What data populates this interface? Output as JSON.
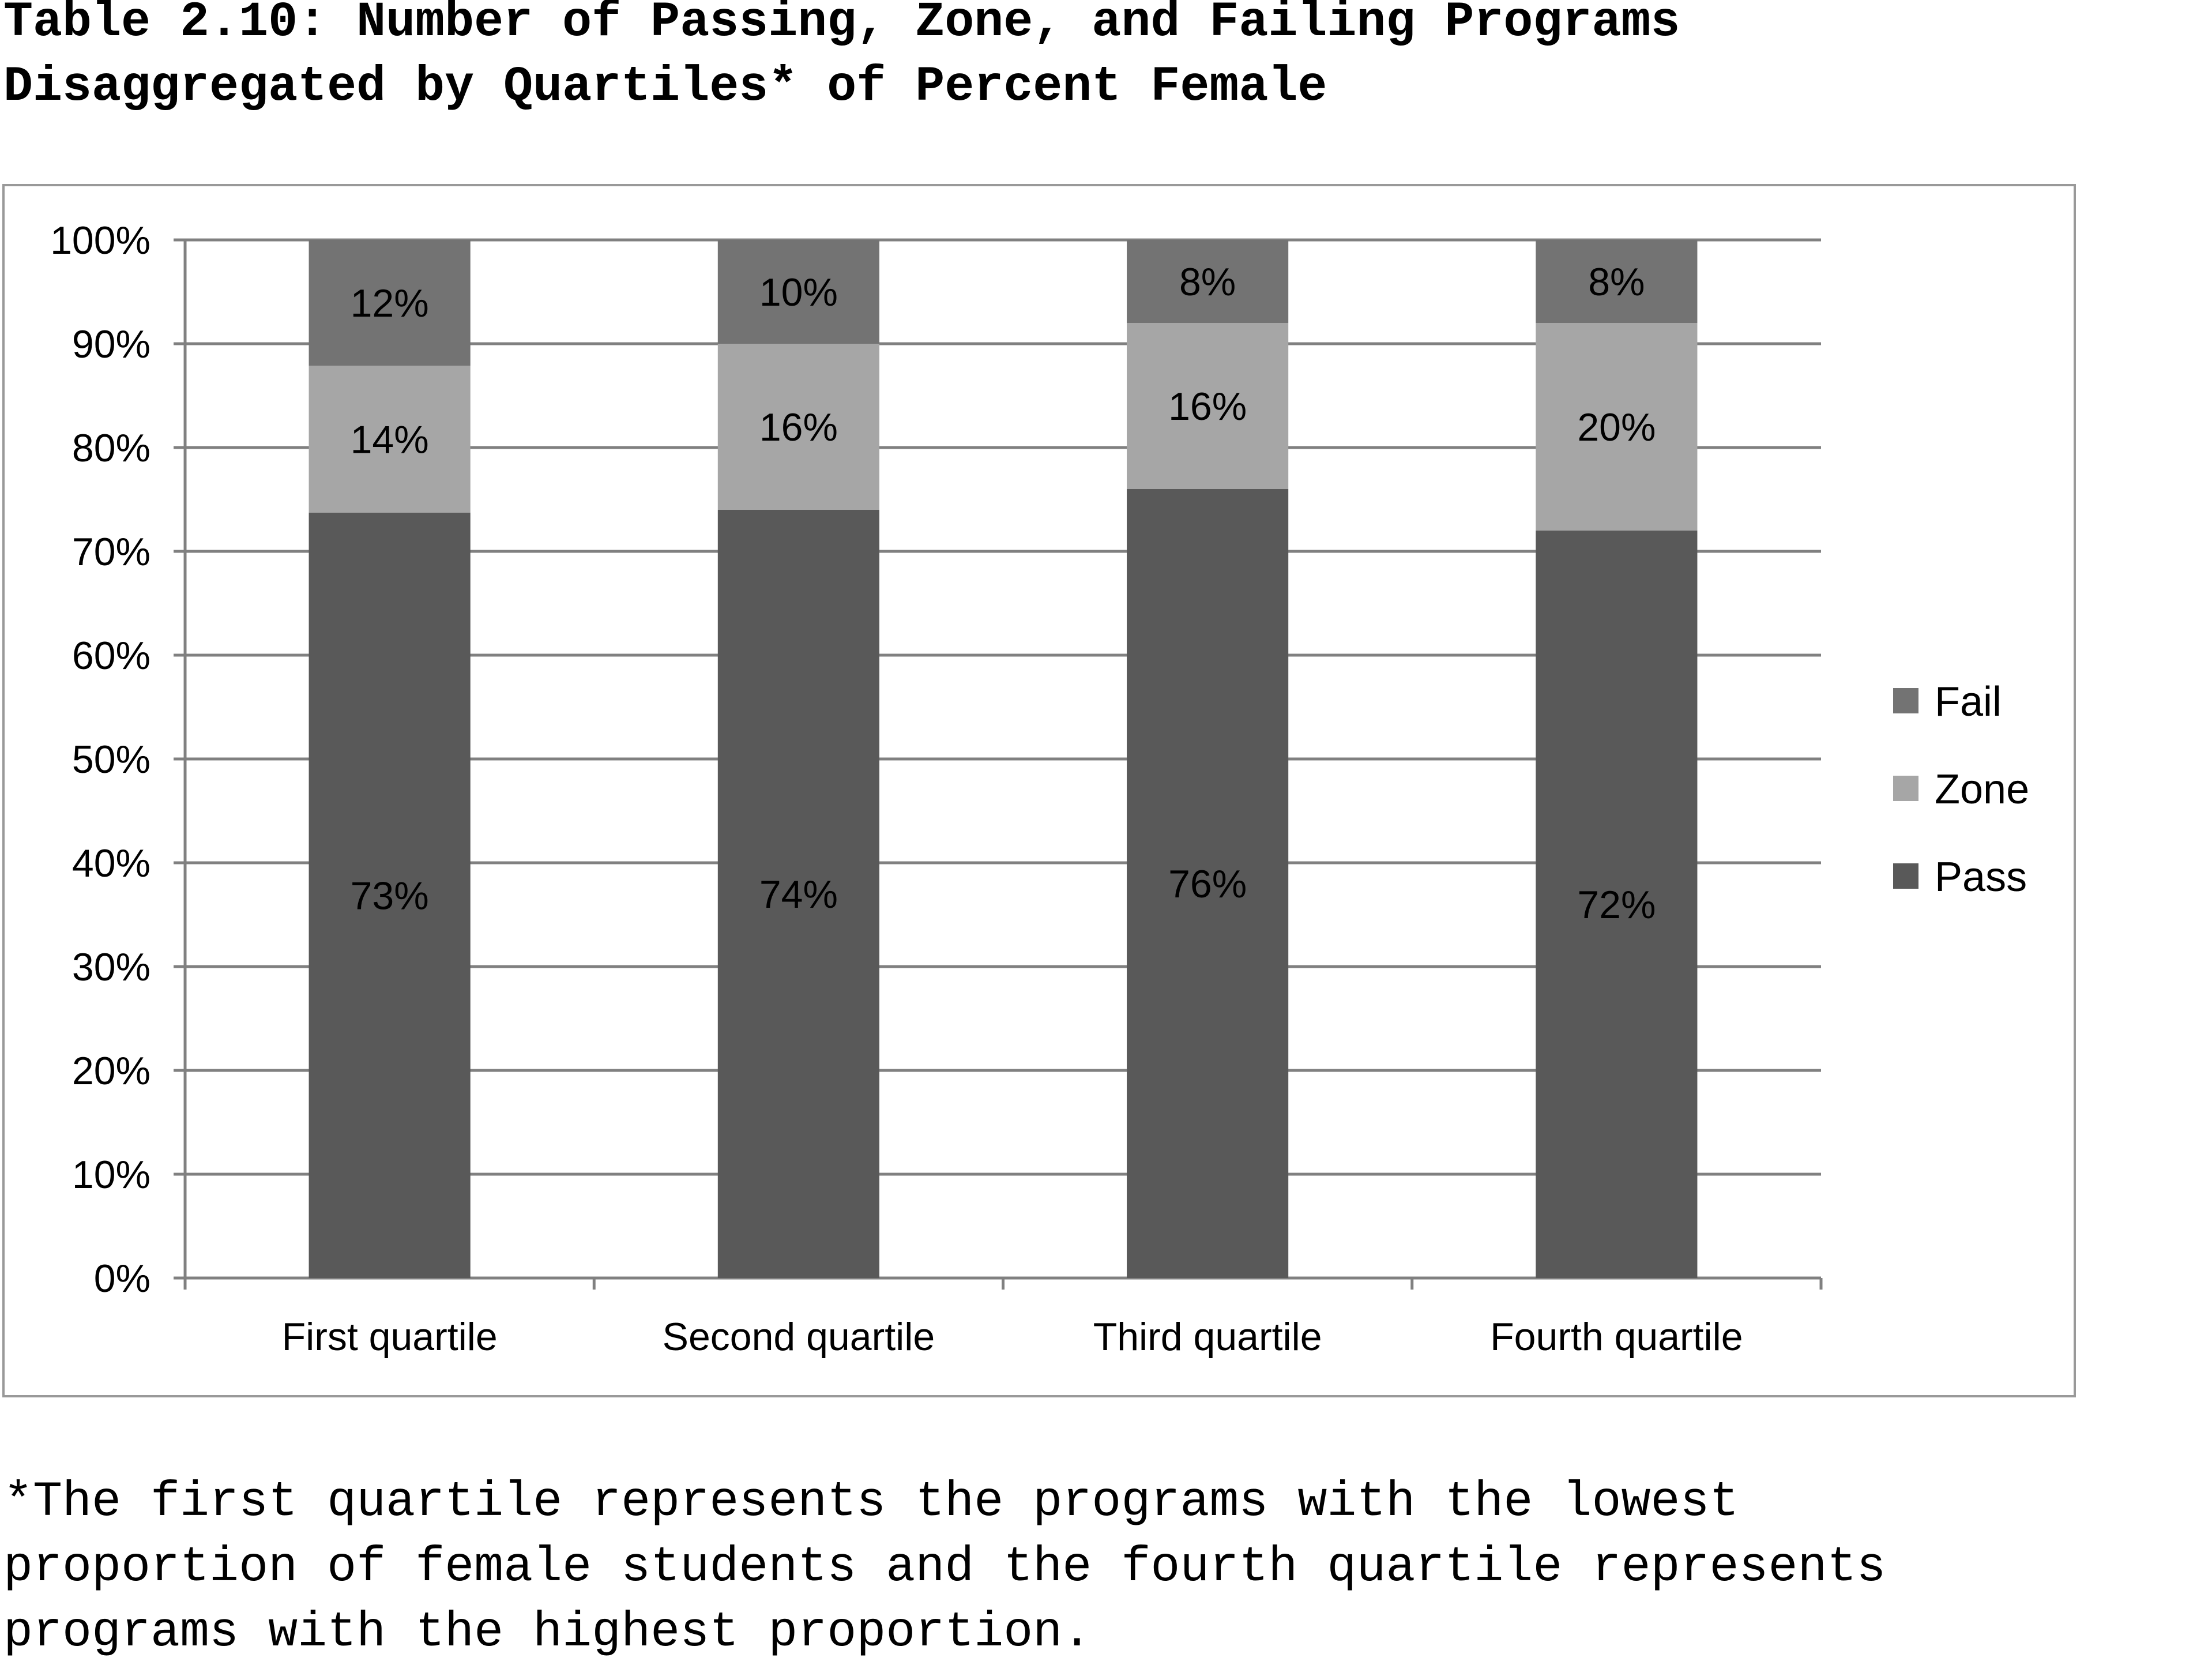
{
  "title": {
    "line1": "Table 2.10: Number of Passing, Zone, and Failing Programs",
    "line2": "Disaggregated by Quartiles* of Percent Female"
  },
  "footnote": {
    "line1": "*The first quartile represents the programs with the lowest",
    "line2": "proportion of female students and the fourth quartile represents",
    "line3": "programs with the highest proportion."
  },
  "chart_data": {
    "type": "bar",
    "stacked": true,
    "percent_stacked": true,
    "categories": [
      "First quartile",
      "Second quartile",
      "Third quartile",
      "Fourth quartile"
    ],
    "series": [
      {
        "name": "Pass",
        "values": [
          73,
          74,
          76,
          72
        ],
        "labels": [
          "73%",
          "74%",
          "76%",
          "72%"
        ],
        "color": "#595959"
      },
      {
        "name": "Zone",
        "values": [
          14,
          16,
          16,
          20
        ],
        "labels": [
          "14%",
          "16%",
          "16%",
          "20%"
        ],
        "color": "#a6a6a6"
      },
      {
        "name": "Fail",
        "values": [
          12,
          10,
          8,
          8
        ],
        "labels": [
          "12%",
          "10%",
          "8%",
          "8%"
        ],
        "color": "#737373"
      }
    ],
    "ylim": [
      0,
      100
    ],
    "yticks": [
      0,
      10,
      20,
      30,
      40,
      50,
      60,
      70,
      80,
      90,
      100
    ],
    "ytick_labels": [
      "0%",
      "10%",
      "20%",
      "30%",
      "40%",
      "50%",
      "60%",
      "70%",
      "80%",
      "90%",
      "100%"
    ],
    "legend": {
      "position": "right",
      "order": [
        "Fail",
        "Zone",
        "Pass"
      ]
    },
    "grid": true,
    "gridline_color": "#808080"
  }
}
